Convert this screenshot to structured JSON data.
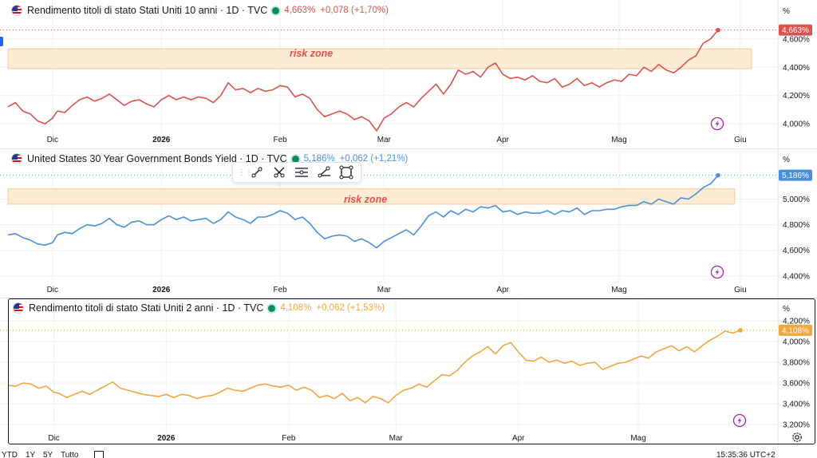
{
  "colors": {
    "series10y": "#d9534f",
    "series30y": "#4a90d9",
    "series2y": "#f0a742",
    "zone_fill": "#fdebd3",
    "zone_border": "#f5c99a",
    "grid": "#eef0f3",
    "live": "#0d8a5f",
    "lightning": "#9c27b0"
  },
  "panes": [
    {
      "title": "Rendimento titoli di stato Stati Uniti 10 anni · 1D · TVC",
      "value": "4,663%",
      "change": "+0,078 (+1,70%)",
      "last_badge": "4,663%",
      "zone_label": "risk zone",
      "unit": "%"
    },
    {
      "title": "United States 30 Year Government Bonds Yield · 1D · TVC",
      "value": "5,186%",
      "change": "+0,062 (+1,21%)",
      "last_badge": "5,186%",
      "zone_label": "risk zone",
      "unit": "%"
    },
    {
      "title": "Rendimento titoli di stato Stati Uniti 2 anni · 1D · TVC",
      "value": "4,108%",
      "change": "+0,062 (+1,53%)",
      "last_badge": "4,108%",
      "zone_label": "",
      "unit": "%"
    }
  ],
  "toolbar": {
    "tools": [
      "trend-line-icon",
      "cross-line-icon",
      "parallel-channel-icon",
      "ray-icon",
      "rectangle-icon"
    ]
  },
  "bottom_bar": {
    "ranges": [
      "YTD",
      "1Y",
      "5Y",
      "Tutto"
    ],
    "clock": "15:35:36 UTC+2"
  },
  "chart_data": [
    {
      "type": "line",
      "title": "Rendimento titoli di stato Stati Uniti 10 anni · 1D · TVC",
      "series": [
        {
          "name": "Rendimento titoli di stato Stati Uniti 10 anni",
          "color": "#d9534f"
        }
      ],
      "y_ticks": [
        "4,000%",
        "4,200%",
        "4,400%",
        "4,600%"
      ],
      "ylim": [
        3.95,
        4.74
      ],
      "x_ticks": [
        "Dic",
        "2026",
        "Feb",
        "Mar",
        "Apr",
        "Mag",
        "Giu"
      ],
      "grid": true,
      "annotation": {
        "label": "risk zone",
        "y_range": [
          4.39,
          4.53
        ]
      },
      "points": [
        [
          0,
          4.12
        ],
        [
          3,
          4.15
        ],
        [
          6,
          4.09
        ],
        [
          9,
          4.07
        ],
        [
          12,
          4.02
        ],
        [
          15,
          4.0
        ],
        [
          18,
          4.04
        ],
        [
          20,
          4.09
        ],
        [
          23,
          4.08
        ],
        [
          26,
          4.13
        ],
        [
          29,
          4.17
        ],
        [
          32,
          4.19
        ],
        [
          35,
          4.16
        ],
        [
          38,
          4.18
        ],
        [
          41,
          4.21
        ],
        [
          44,
          4.17
        ],
        [
          47,
          4.13
        ],
        [
          50,
          4.16
        ],
        [
          53,
          4.17
        ],
        [
          56,
          4.14
        ],
        [
          59,
          4.12
        ],
        [
          62,
          4.17
        ],
        [
          65,
          4.2
        ],
        [
          68,
          4.17
        ],
        [
          71,
          4.19
        ],
        [
          74,
          4.17
        ],
        [
          77,
          4.19
        ],
        [
          80,
          4.18
        ],
        [
          83,
          4.15
        ],
        [
          86,
          4.2
        ],
        [
          89,
          4.29
        ],
        [
          92,
          4.24
        ],
        [
          95,
          4.25
        ],
        [
          98,
          4.22
        ],
        [
          101,
          4.25
        ],
        [
          104,
          4.23
        ],
        [
          107,
          4.24
        ],
        [
          110,
          4.27
        ],
        [
          113,
          4.26
        ],
        [
          116,
          4.19
        ],
        [
          119,
          4.21
        ],
        [
          122,
          4.18
        ],
        [
          125,
          4.1
        ],
        [
          128,
          4.05
        ],
        [
          131,
          4.07
        ],
        [
          134,
          4.09
        ],
        [
          137,
          4.07
        ],
        [
          140,
          4.03
        ],
        [
          143,
          4.05
        ],
        [
          146,
          4.02
        ],
        [
          149,
          3.95
        ],
        [
          152,
          4.04
        ],
        [
          155,
          4.07
        ],
        [
          158,
          4.12
        ],
        [
          161,
          4.15
        ],
        [
          164,
          4.12
        ],
        [
          167,
          4.18
        ],
        [
          170,
          4.23
        ],
        [
          173,
          4.28
        ],
        [
          176,
          4.21
        ],
        [
          179,
          4.28
        ],
        [
          182,
          4.38
        ],
        [
          185,
          4.35
        ],
        [
          188,
          4.37
        ],
        [
          191,
          4.33
        ],
        [
          194,
          4.4
        ],
        [
          197,
          4.43
        ],
        [
          200,
          4.35
        ],
        [
          203,
          4.32
        ],
        [
          206,
          4.33
        ],
        [
          209,
          4.31
        ],
        [
          212,
          4.34
        ],
        [
          215,
          4.3
        ],
        [
          218,
          4.29
        ],
        [
          221,
          4.32
        ],
        [
          224,
          4.26
        ],
        [
          227,
          4.28
        ],
        [
          230,
          4.32
        ],
        [
          233,
          4.27
        ],
        [
          236,
          4.29
        ],
        [
          239,
          4.26
        ],
        [
          242,
          4.29
        ],
        [
          245,
          4.31
        ],
        [
          248,
          4.3
        ],
        [
          251,
          4.35
        ],
        [
          254,
          4.34
        ],
        [
          257,
          4.4
        ],
        [
          260,
          4.37
        ],
        [
          263,
          4.42
        ],
        [
          266,
          4.38
        ],
        [
          269,
          4.36
        ],
        [
          272,
          4.4
        ],
        [
          275,
          4.45
        ],
        [
          278,
          4.48
        ],
        [
          281,
          4.57
        ],
        [
          284,
          4.6
        ],
        [
          287,
          4.663
        ]
      ],
      "x_tick_positions": [
        18,
        62,
        110,
        152,
        200,
        247,
        296
      ],
      "last_value": 4.663
    },
    {
      "type": "line",
      "title": "United States 30 Year Government Bonds Yield · 1D · TVC",
      "series": [
        {
          "name": "United States 30 Year Government Bonds Yield",
          "color": "#4a90d9"
        }
      ],
      "y_ticks": [
        "4,400%",
        "4,600%",
        "4,800%",
        "5,000%"
      ],
      "ylim": [
        4.38,
        5.24
      ],
      "x_ticks": [
        "Dic",
        "2026",
        "Feb",
        "Mar",
        "Apr",
        "Mag",
        "Giu"
      ],
      "grid": true,
      "annotation": {
        "label": "risk zone",
        "y_range": [
          4.96,
          5.08
        ]
      },
      "points": [
        [
          0,
          4.72
        ],
        [
          3,
          4.73
        ],
        [
          6,
          4.7
        ],
        [
          9,
          4.68
        ],
        [
          12,
          4.65
        ],
        [
          15,
          4.64
        ],
        [
          18,
          4.66
        ],
        [
          20,
          4.72
        ],
        [
          23,
          4.74
        ],
        [
          26,
          4.73
        ],
        [
          29,
          4.77
        ],
        [
          32,
          4.8
        ],
        [
          35,
          4.79
        ],
        [
          38,
          4.81
        ],
        [
          41,
          4.85
        ],
        [
          44,
          4.8
        ],
        [
          47,
          4.78
        ],
        [
          50,
          4.82
        ],
        [
          53,
          4.83
        ],
        [
          56,
          4.8
        ],
        [
          59,
          4.8
        ],
        [
          62,
          4.84
        ],
        [
          65,
          4.87
        ],
        [
          68,
          4.84
        ],
        [
          71,
          4.86
        ],
        [
          74,
          4.83
        ],
        [
          77,
          4.84
        ],
        [
          80,
          4.85
        ],
        [
          83,
          4.81
        ],
        [
          86,
          4.84
        ],
        [
          89,
          4.9
        ],
        [
          92,
          4.86
        ],
        [
          95,
          4.84
        ],
        [
          98,
          4.81
        ],
        [
          101,
          4.86
        ],
        [
          104,
          4.86
        ],
        [
          107,
          4.88
        ],
        [
          110,
          4.91
        ],
        [
          113,
          4.89
        ],
        [
          116,
          4.84
        ],
        [
          119,
          4.86
        ],
        [
          122,
          4.81
        ],
        [
          125,
          4.74
        ],
        [
          128,
          4.69
        ],
        [
          131,
          4.71
        ],
        [
          134,
          4.72
        ],
        [
          137,
          4.71
        ],
        [
          140,
          4.67
        ],
        [
          143,
          4.69
        ],
        [
          146,
          4.66
        ],
        [
          149,
          4.62
        ],
        [
          152,
          4.67
        ],
        [
          155,
          4.7
        ],
        [
          158,
          4.73
        ],
        [
          161,
          4.76
        ],
        [
          164,
          4.72
        ],
        [
          167,
          4.79
        ],
        [
          170,
          4.87
        ],
        [
          173,
          4.9
        ],
        [
          176,
          4.86
        ],
        [
          179,
          4.91
        ],
        [
          182,
          4.88
        ],
        [
          185,
          4.92
        ],
        [
          188,
          4.9
        ],
        [
          191,
          4.94
        ],
        [
          194,
          4.93
        ],
        [
          197,
          4.95
        ],
        [
          200,
          4.9
        ],
        [
          203,
          4.91
        ],
        [
          206,
          4.88
        ],
        [
          209,
          4.9
        ],
        [
          212,
          4.89
        ],
        [
          215,
          4.89
        ],
        [
          218,
          4.91
        ],
        [
          221,
          4.88
        ],
        [
          224,
          4.91
        ],
        [
          227,
          4.9
        ],
        [
          230,
          4.93
        ],
        [
          233,
          4.88
        ],
        [
          236,
          4.91
        ],
        [
          239,
          4.91
        ],
        [
          242,
          4.92
        ],
        [
          245,
          4.92
        ],
        [
          248,
          4.94
        ],
        [
          251,
          4.95
        ],
        [
          254,
          4.95
        ],
        [
          257,
          4.98
        ],
        [
          260,
          4.96
        ],
        [
          263,
          5.0
        ],
        [
          266,
          4.98
        ],
        [
          269,
          4.96
        ],
        [
          272,
          5.01
        ],
        [
          275,
          5.0
        ],
        [
          278,
          5.04
        ],
        [
          281,
          5.09
        ],
        [
          284,
          5.12
        ],
        [
          287,
          5.186
        ]
      ],
      "x_tick_positions": [
        18,
        62,
        110,
        152,
        200,
        247,
        296
      ],
      "last_value": 5.186
    },
    {
      "type": "line",
      "title": "Rendimento titoli di stato Stati Uniti 2 anni · 1D · TVC",
      "series": [
        {
          "name": "Rendimento titoli di stato Stati Uniti 2 anni",
          "color": "#f0a742"
        }
      ],
      "y_ticks": [
        "3,200%",
        "3,400%",
        "3,600%",
        "3,800%",
        "4,000%",
        "4,200%"
      ],
      "ylim": [
        3.17,
        4.23
      ],
      "x_ticks": [
        "Dic",
        "2026",
        "Feb",
        "Mar",
        "Apr",
        "Mag"
      ],
      "grid": true,
      "points": [
        [
          0,
          3.58
        ],
        [
          3,
          3.57
        ],
        [
          6,
          3.6
        ],
        [
          9,
          3.59
        ],
        [
          12,
          3.55
        ],
        [
          15,
          3.57
        ],
        [
          18,
          3.51
        ],
        [
          20,
          3.5
        ],
        [
          23,
          3.46
        ],
        [
          26,
          3.49
        ],
        [
          29,
          3.52
        ],
        [
          32,
          3.49
        ],
        [
          35,
          3.53
        ],
        [
          38,
          3.57
        ],
        [
          41,
          3.61
        ],
        [
          44,
          3.55
        ],
        [
          47,
          3.53
        ],
        [
          50,
          3.51
        ],
        [
          53,
          3.49
        ],
        [
          56,
          3.48
        ],
        [
          59,
          3.47
        ],
        [
          62,
          3.49
        ],
        [
          65,
          3.46
        ],
        [
          68,
          3.49
        ],
        [
          71,
          3.48
        ],
        [
          74,
          3.45
        ],
        [
          77,
          3.47
        ],
        [
          80,
          3.48
        ],
        [
          83,
          3.51
        ],
        [
          86,
          3.55
        ],
        [
          89,
          3.53
        ],
        [
          92,
          3.52
        ],
        [
          95,
          3.55
        ],
        [
          98,
          3.58
        ],
        [
          101,
          3.59
        ],
        [
          104,
          3.57
        ],
        [
          107,
          3.56
        ],
        [
          110,
          3.58
        ],
        [
          113,
          3.53
        ],
        [
          116,
          3.56
        ],
        [
          119,
          3.53
        ],
        [
          122,
          3.46
        ],
        [
          125,
          3.48
        ],
        [
          128,
          3.45
        ],
        [
          131,
          3.5
        ],
        [
          134,
          3.43
        ],
        [
          137,
          3.46
        ],
        [
          140,
          3.41
        ],
        [
          143,
          3.47
        ],
        [
          146,
          3.45
        ],
        [
          149,
          3.41
        ],
        [
          152,
          3.48
        ],
        [
          155,
          3.53
        ],
        [
          158,
          3.55
        ],
        [
          161,
          3.59
        ],
        [
          164,
          3.56
        ],
        [
          167,
          3.62
        ],
        [
          170,
          3.68
        ],
        [
          173,
          3.67
        ],
        [
          176,
          3.72
        ],
        [
          179,
          3.8
        ],
        [
          182,
          3.86
        ],
        [
          185,
          3.9
        ],
        [
          188,
          3.95
        ],
        [
          191,
          3.88
        ],
        [
          194,
          3.96
        ],
        [
          197,
          3.99
        ],
        [
          200,
          3.9
        ],
        [
          203,
          3.82
        ],
        [
          206,
          3.81
        ],
        [
          209,
          3.85
        ],
        [
          212,
          3.8
        ],
        [
          215,
          3.82
        ],
        [
          218,
          3.79
        ],
        [
          221,
          3.81
        ],
        [
          224,
          3.77
        ],
        [
          227,
          3.79
        ],
        [
          230,
          3.8
        ],
        [
          233,
          3.73
        ],
        [
          236,
          3.76
        ],
        [
          239,
          3.79
        ],
        [
          242,
          3.8
        ],
        [
          245,
          3.83
        ],
        [
          248,
          3.86
        ],
        [
          251,
          3.84
        ],
        [
          254,
          3.9
        ],
        [
          257,
          3.93
        ],
        [
          260,
          3.96
        ],
        [
          263,
          3.91
        ],
        [
          266,
          3.95
        ],
        [
          269,
          3.9
        ],
        [
          272,
          3.96
        ],
        [
          275,
          4.01
        ],
        [
          278,
          4.05
        ],
        [
          281,
          4.1
        ],
        [
          284,
          4.08
        ],
        [
          287,
          4.108
        ]
      ],
      "x_tick_positions": [
        18,
        62,
        110,
        152,
        200,
        247
      ],
      "last_value": 4.108
    }
  ]
}
